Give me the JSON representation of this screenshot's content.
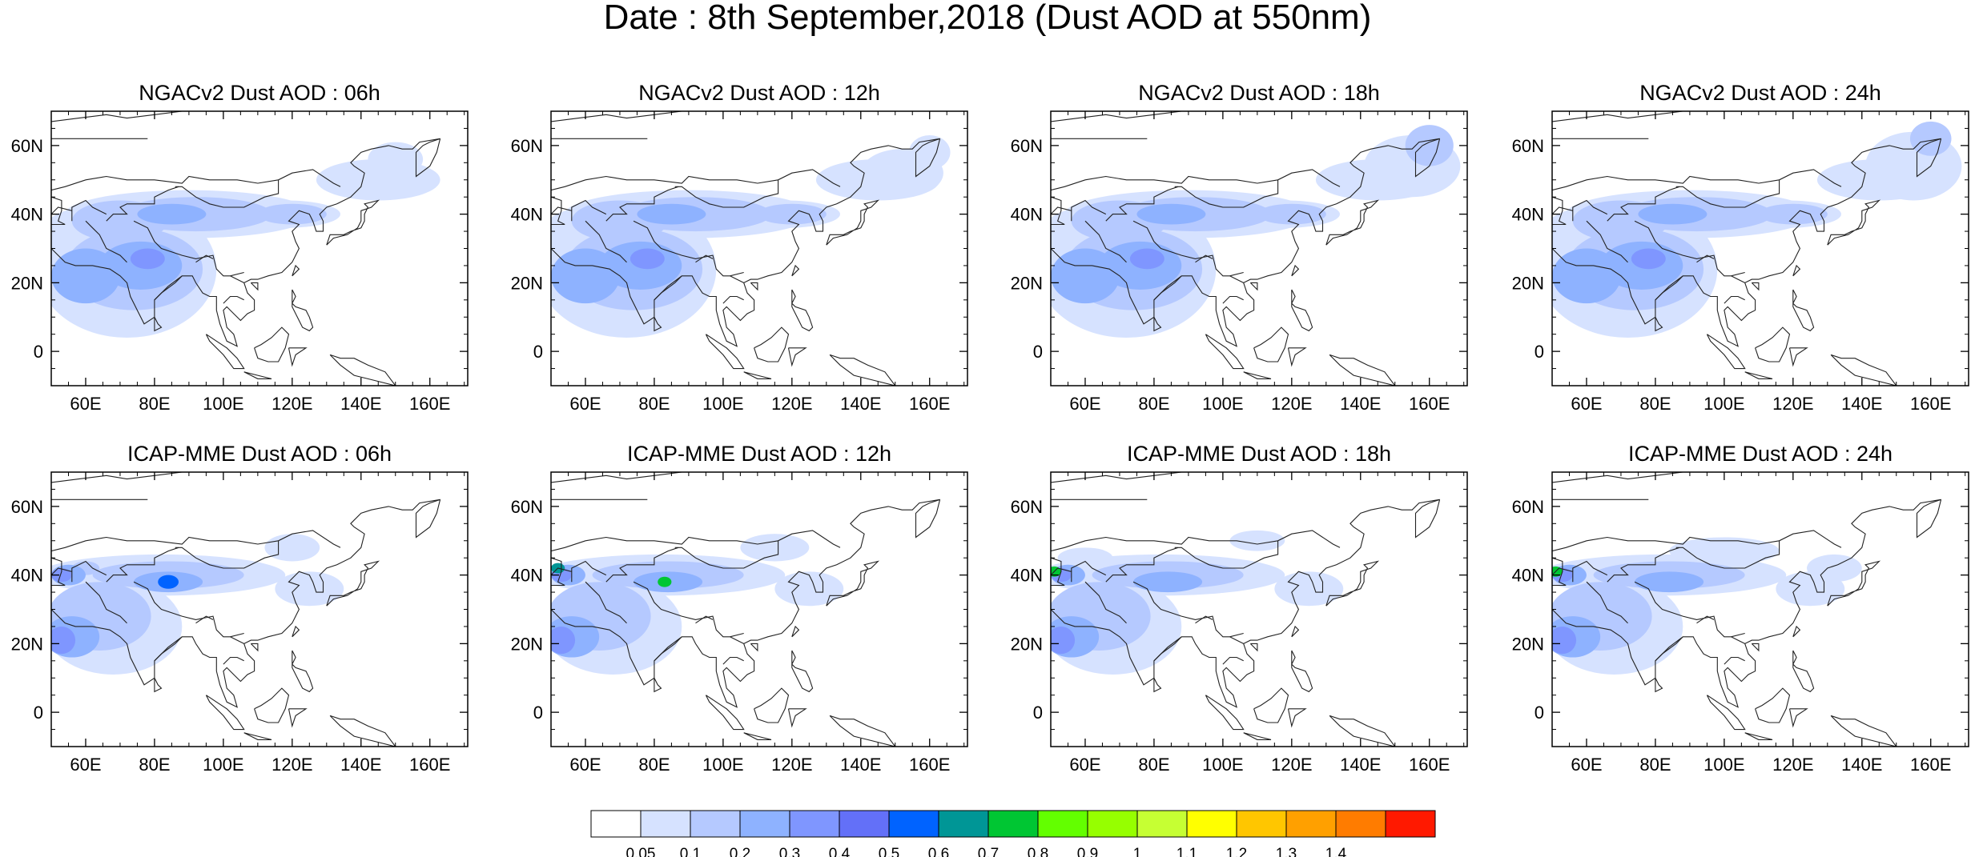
{
  "figure": {
    "title": "Date : 8th September,2018 (Dust AOD at 550nm)"
  },
  "axes": {
    "lon_ticks": [
      "60E",
      "80E",
      "100E",
      "120E",
      "140E",
      "160E"
    ],
    "lat_ticks": [
      "60N",
      "40N",
      "20N",
      "0"
    ],
    "lon_range": [
      50,
      171
    ],
    "lat_range": [
      -10,
      70
    ]
  },
  "panels": [
    {
      "title": "NGACv2 Dust AOD : 06h",
      "model": "NGACv2",
      "hour": "06h"
    },
    {
      "title": "NGACv2 Dust AOD : 12h",
      "model": "NGACv2",
      "hour": "12h"
    },
    {
      "title": "NGACv2 Dust AOD : 18h",
      "model": "NGACv2",
      "hour": "18h"
    },
    {
      "title": "NGACv2 Dust AOD : 24h",
      "model": "NGACv2",
      "hour": "24h"
    },
    {
      "title": "ICAP-MME Dust AOD : 06h",
      "model": "ICAP-MME",
      "hour": "06h"
    },
    {
      "title": "ICAP-MME Dust AOD : 12h",
      "model": "ICAP-MME",
      "hour": "12h"
    },
    {
      "title": "ICAP-MME Dust AOD : 18h",
      "model": "ICAP-MME",
      "hour": "18h"
    },
    {
      "title": "ICAP-MME Dust AOD : 24h",
      "model": "ICAP-MME",
      "hour": "24h"
    }
  ],
  "colorbar": {
    "labels": [
      "0.05",
      "0.1",
      "0.2",
      "0.3",
      "0.4",
      "0.5",
      "0.6",
      "0.7",
      "0.8",
      "0.9",
      "1",
      "1.1",
      "1.2",
      "1.3",
      "1.4"
    ],
    "colors": [
      "#ffffff",
      "#d6e2ff",
      "#b5c9ff",
      "#8eb2ff",
      "#7f96ff",
      "#6370f8",
      "#0063ff",
      "#009696",
      "#00c633",
      "#63ff00",
      "#96ff00",
      "#c6ff33",
      "#ffff00",
      "#ffc600",
      "#ffa000",
      "#ff7c00",
      "#ff1900"
    ]
  }
}
